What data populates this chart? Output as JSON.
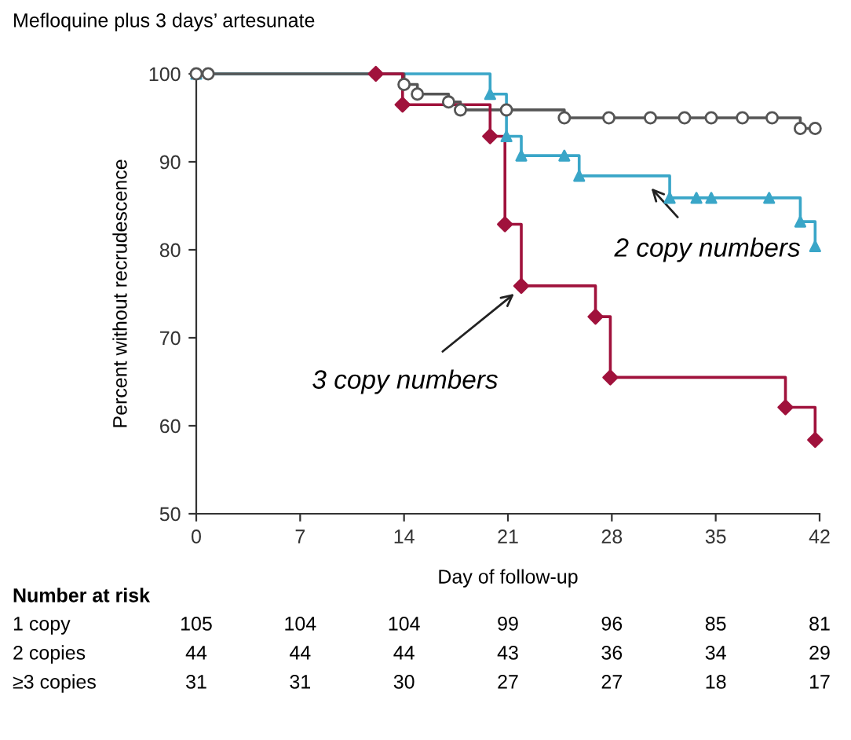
{
  "chart_data": {
    "type": "step",
    "title": "Mefloquine plus 3 days’ artesunate",
    "xlabel": "Day of follow-up",
    "ylabel": "Percent without recrudescence",
    "xlim": [
      0,
      42
    ],
    "xticks": [
      0,
      7,
      14,
      21,
      28,
      35,
      42
    ],
    "ylim": [
      50,
      100
    ],
    "yticks": [
      50,
      60,
      70,
      80,
      90,
      100
    ],
    "grid": false,
    "legend": false,
    "series": [
      {
        "color": "#3aa6c8",
        "marker": "triangle",
        "x": [
          0,
          19.8,
          20.9,
          21.9,
          24.8,
          25.8,
          31.9,
          33.7,
          34.7,
          38.6,
          40.7,
          41.7
        ],
        "values": [
          100,
          97.7,
          92.9,
          90.7,
          90.7,
          88.4,
          85.9,
          85.9,
          85.9,
          85.9,
          83.2,
          80.4
        ]
      },
      {
        "color": "#555555",
        "marker": "circle",
        "x": [
          0,
          0.8,
          14,
          14.9,
          17,
          17.8,
          20.9,
          24.8,
          27.8,
          30.6,
          32.9,
          34.7,
          36.8,
          38.8,
          40.7,
          41.7
        ],
        "values": [
          100,
          100,
          98.8,
          97.7,
          96.8,
          95.9,
          95.9,
          95,
          95,
          95,
          95,
          95,
          95,
          95,
          93.8,
          93.8
        ]
      },
      {
        "color": "#a0123c",
        "marker": "diamond",
        "x": [
          12.1,
          13.9,
          19.8,
          20.8,
          21.9,
          26.9,
          27.9,
          39.7,
          41.7
        ],
        "values": [
          100,
          96.5,
          92.9,
          82.9,
          75.9,
          72.4,
          65.5,
          62.1,
          58.4
        ]
      }
    ],
    "annotations": [
      "2 copy numbers",
      "3 copy numbers",
      "Number at risk",
      "1 copy",
      "105",
      "104",
      "104",
      "99",
      "96",
      "85",
      "81",
      "2 copies",
      "44",
      "44",
      "44",
      "43",
      "36",
      "34",
      "29",
      "≥3 copies",
      "31",
      "31",
      "30",
      "27",
      "27",
      "18",
      "17"
    ]
  }
}
